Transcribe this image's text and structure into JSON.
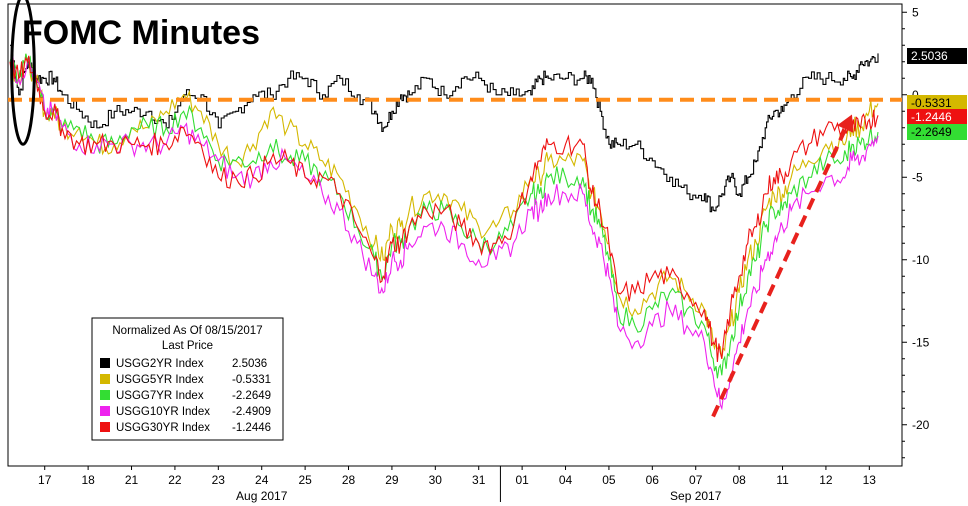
{
  "chart_data": {
    "type": "line",
    "title": "FOMC Minutes",
    "ylim": [
      -22.5,
      5.5
    ],
    "yticks": [
      5,
      0,
      -5,
      -10,
      -15,
      -20
    ],
    "x_range": [
      0,
      100
    ],
    "x_ticks": [
      {
        "label": "17",
        "x": 4
      },
      {
        "label": "18",
        "x": 9
      },
      {
        "label": "21",
        "x": 14
      },
      {
        "label": "22",
        "x": 19
      },
      {
        "label": "23",
        "x": 24
      },
      {
        "label": "24",
        "x": 29
      },
      {
        "label": "25",
        "x": 34
      },
      {
        "label": "28",
        "x": 39
      },
      {
        "label": "29",
        "x": 44
      },
      {
        "label": "30",
        "x": 49
      },
      {
        "label": "31",
        "x": 54
      },
      {
        "label": "01",
        "x": 59
      },
      {
        "label": "04",
        "x": 64
      },
      {
        "label": "05",
        "x": 69
      },
      {
        "label": "06",
        "x": 74
      },
      {
        "label": "07",
        "x": 79
      },
      {
        "label": "08",
        "x": 84
      },
      {
        "label": "11",
        "x": 89
      },
      {
        "label": "12",
        "x": 94
      },
      {
        "label": "13",
        "x": 99
      }
    ],
    "month_labels": [
      {
        "label": "Aug 2017",
        "x": 29
      },
      {
        "label": "Sep 2017",
        "x": 79
      }
    ],
    "month_divider_x": 56.5,
    "reference_line": {
      "y": -0.3,
      "color": "#ff8c1a"
    },
    "series": [
      {
        "name": "USGG2YR Index",
        "last": "2.5036",
        "color": "#000000",
        "x": [
          0,
          1,
          2,
          3,
          4,
          5,
          6,
          8,
          10,
          12,
          14,
          16,
          18,
          20,
          22,
          24,
          26,
          28,
          30,
          32,
          34,
          36,
          38,
          40,
          42,
          43,
          44,
          45,
          46,
          48,
          50,
          52,
          54,
          56,
          58,
          60,
          61,
          62,
          64,
          66,
          67,
          68,
          69,
          70,
          72,
          74,
          76,
          78,
          80,
          81,
          82,
          83,
          84,
          85,
          86,
          87,
          88,
          89,
          90,
          92,
          94,
          96,
          97,
          98,
          99,
          100
        ],
        "y": [
          3,
          0,
          2,
          1,
          1,
          1,
          0,
          -1,
          -2,
          -1,
          -1,
          -1,
          -2,
          0,
          0,
          -2,
          -1,
          0,
          0,
          1,
          1,
          0,
          1,
          0,
          -1,
          -2,
          -1,
          0,
          0,
          1,
          0,
          1,
          1,
          0,
          0,
          0,
          1,
          1,
          1,
          1,
          1,
          -1,
          -3,
          -3,
          -3,
          -4,
          -5,
          -6,
          -6,
          -7,
          -6,
          -5,
          -6,
          -5,
          -4,
          -2,
          -1,
          -1,
          0,
          1,
          1,
          1,
          1,
          2,
          2,
          2.5036
        ]
      },
      {
        "name": "USGG5YR Index",
        "last": "-0.5331",
        "color": "#d4b800",
        "x": [
          0,
          1,
          2,
          3,
          4,
          5,
          6,
          8,
          10,
          12,
          14,
          16,
          18,
          20,
          22,
          24,
          26,
          28,
          30,
          32,
          34,
          36,
          38,
          40,
          42,
          43,
          44,
          45,
          46,
          48,
          50,
          52,
          54,
          56,
          58,
          60,
          61,
          62,
          64,
          66,
          67,
          68,
          69,
          70,
          72,
          74,
          76,
          78,
          80,
          81,
          82,
          83,
          84,
          85,
          86,
          87,
          88,
          89,
          90,
          92,
          94,
          96,
          97,
          98,
          99,
          100
        ],
        "y": [
          2,
          1,
          2,
          1,
          -1,
          -1,
          -2,
          -2,
          -3,
          -3,
          -2,
          -2,
          -1,
          0,
          -1,
          -3,
          -4,
          -3,
          -1,
          -2,
          -3,
          -4,
          -5,
          -7,
          -9,
          -10,
          -8,
          -8,
          -7,
          -6,
          -6,
          -7,
          -8,
          -8,
          -7,
          -5,
          -5,
          -4,
          -4,
          -4,
          -6,
          -7,
          -9,
          -12,
          -13,
          -12,
          -11,
          -12,
          -13,
          -15,
          -16,
          -14,
          -12,
          -10,
          -9,
          -7,
          -6,
          -6,
          -5,
          -4,
          -3,
          -3,
          -2,
          -2,
          -1,
          -0.5331
        ]
      },
      {
        "name": "USGG7YR Index",
        "last": "-2.2649",
        "color": "#33dd33",
        "x": [
          0,
          1,
          2,
          3,
          4,
          5,
          6,
          8,
          10,
          12,
          14,
          16,
          18,
          20,
          22,
          24,
          26,
          28,
          30,
          32,
          34,
          36,
          38,
          40,
          42,
          43,
          44,
          45,
          46,
          48,
          50,
          52,
          54,
          56,
          58,
          60,
          61,
          62,
          64,
          66,
          67,
          68,
          69,
          70,
          72,
          74,
          76,
          78,
          80,
          81,
          82,
          83,
          84,
          85,
          86,
          87,
          88,
          89,
          90,
          92,
          94,
          96,
          97,
          98,
          99,
          100
        ],
        "y": [
          2,
          1,
          2,
          1,
          -1,
          -1,
          -2,
          -2,
          -3,
          -3,
          -2,
          -2,
          -2,
          -1,
          -2,
          -4,
          -4,
          -4,
          -3,
          -4,
          -4,
          -5,
          -6,
          -8,
          -10,
          -11,
          -9,
          -9,
          -8,
          -7,
          -7,
          -8,
          -9,
          -9,
          -8,
          -6,
          -6,
          -5,
          -5,
          -5,
          -7,
          -8,
          -10,
          -13,
          -14,
          -13,
          -12,
          -13,
          -14,
          -16,
          -17,
          -15,
          -13,
          -11,
          -10,
          -8,
          -7,
          -7,
          -6,
          -5,
          -4,
          -4,
          -3,
          -3,
          -2.5,
          -2.2649
        ]
      },
      {
        "name": "USGG10YR Index",
        "last": "-2.4909",
        "color": "#ee22ee",
        "x": [
          0,
          1,
          2,
          3,
          4,
          5,
          6,
          8,
          10,
          12,
          14,
          16,
          18,
          20,
          22,
          24,
          26,
          28,
          30,
          32,
          34,
          36,
          38,
          40,
          42,
          43,
          44,
          45,
          46,
          48,
          50,
          52,
          54,
          56,
          58,
          60,
          61,
          62,
          64,
          66,
          67,
          68,
          69,
          70,
          72,
          74,
          76,
          78,
          80,
          81,
          82,
          83,
          84,
          85,
          86,
          87,
          88,
          89,
          90,
          92,
          94,
          96,
          97,
          98,
          99,
          100
        ],
        "y": [
          2,
          1,
          2,
          1,
          -1,
          -1,
          -2,
          -3,
          -3,
          -3,
          -3,
          -3,
          -3,
          -2,
          -3,
          -4,
          -5,
          -5,
          -4,
          -4,
          -5,
          -6,
          -7,
          -9,
          -11,
          -12,
          -10,
          -10,
          -9,
          -8,
          -8,
          -9,
          -10,
          -10,
          -9,
          -7,
          -7,
          -6,
          -6,
          -6,
          -8,
          -9,
          -11,
          -14,
          -15,
          -14,
          -13,
          -14,
          -15,
          -17,
          -19,
          -17,
          -15,
          -13,
          -12,
          -10,
          -9,
          -8,
          -7,
          -6,
          -5,
          -5,
          -4,
          -4,
          -3,
          -2.4909
        ]
      },
      {
        "name": "USGG30YR Index",
        "last": "-1.2446",
        "color": "#ee1111",
        "x": [
          0,
          1,
          2,
          3,
          4,
          5,
          6,
          8,
          10,
          12,
          14,
          16,
          18,
          20,
          22,
          24,
          26,
          28,
          30,
          32,
          34,
          36,
          38,
          40,
          42,
          43,
          44,
          45,
          46,
          48,
          50,
          52,
          54,
          56,
          58,
          60,
          61,
          62,
          64,
          66,
          67,
          68,
          69,
          70,
          72,
          74,
          76,
          78,
          80,
          81,
          82,
          83,
          84,
          85,
          86,
          87,
          88,
          89,
          90,
          92,
          94,
          96,
          97,
          98,
          99,
          100
        ],
        "y": [
          2,
          1,
          2,
          1,
          -1,
          -1,
          -2,
          -3,
          -3,
          -3,
          -3,
          -3,
          -3,
          -2,
          -3,
          -5,
          -5,
          -5,
          -4,
          -4,
          -5,
          -5,
          -6,
          -8,
          -10,
          -11,
          -9,
          -9,
          -8,
          -7,
          -7,
          -8,
          -9,
          -9,
          -8,
          -5,
          -4,
          -3,
          -3,
          -3,
          -6,
          -7,
          -9,
          -12,
          -12,
          -11,
          -11,
          -12,
          -13,
          -15,
          -16,
          -13,
          -11,
          -9,
          -8,
          -6,
          -5,
          -5,
          -4,
          -3,
          -2,
          -2,
          -2,
          -2,
          -1.5,
          -1.2446
        ]
      }
    ],
    "legend": {
      "placement": "bottom-left",
      "header1": "Normalized As Of 08/15/2017",
      "header2": "Last Price"
    },
    "annotations": {
      "arrow": {
        "x1": 81,
        "y1": -19.5,
        "x2": 97,
        "y2": -1.2,
        "color": "#e8211d"
      },
      "ellipse": {
        "x": 1.5,
        "y": 1.5,
        "rx_data": 1.3,
        "ry_data": 4.5
      }
    }
  }
}
